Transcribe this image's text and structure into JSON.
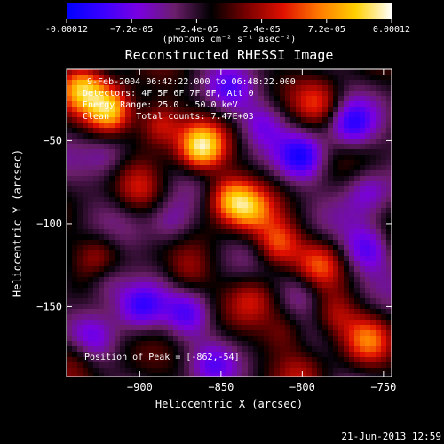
{
  "colorbar": {
    "ticks": [
      "-0.00012",
      "−7.2e-05",
      "−2.4e-05",
      "2.4e-05",
      "7.2e-05",
      "0.00012"
    ],
    "tick_values": [
      -0.00012,
      -7.2e-05,
      -2.4e-05,
      2.4e-05,
      7.2e-05,
      0.00012
    ],
    "range": [
      -0.00012,
      0.00012
    ],
    "unit_label": "(photons cm⁻² s⁻¹ asec⁻²)",
    "colors": [
      "#0000ff",
      "#3a00ff",
      "#7a00e0",
      "#6a1e6a",
      "#000000",
      "#7a0000",
      "#e01000",
      "#ff7a00",
      "#ffd000",
      "#ffffff"
    ]
  },
  "chart_data": {
    "type": "heatmap",
    "title": "Reconstructed RHESSI Image",
    "xlabel": "Heliocentric X (arcsec)",
    "ylabel": "Heliocentric Y (arcsec)",
    "xlim": [
      -945,
      -745
    ],
    "ylim": [
      -192,
      -7
    ],
    "x_ticks": [
      -900,
      -850,
      -800,
      -750
    ],
    "x_tick_labels": [
      "−900",
      "−850",
      "−800",
      "−750"
    ],
    "y_ticks": [
      -50,
      -100,
      -150
    ],
    "y_tick_labels": [
      "−50",
      "−100",
      "−150"
    ],
    "annotations": [
      "9-Feb-2004 06:42:22.000 to 06:48:22.000",
      "Detectors: 4F 5F 6F 7F 8F, Att 0",
      "Energy Range: 25.0 - 50.0 keV",
      "Clean     Total counts: 7.47E+03"
    ],
    "peak_label": "Position of Peak = [-862,-54]",
    "peak": [
      -862,
      -54
    ],
    "sources": [
      {
        "x": -862,
        "y": -54,
        "amp": 1.0
      },
      {
        "x": -918,
        "y": -32,
        "amp": 0.95
      },
      {
        "x": -935,
        "y": -18,
        "amp": 0.8
      },
      {
        "x": -888,
        "y": -40,
        "amp": 0.6
      },
      {
        "x": -845,
        "y": -85,
        "amp": 0.75
      },
      {
        "x": -832,
        "y": -92,
        "amp": 0.6
      },
      {
        "x": -815,
        "y": -112,
        "amp": 0.65
      },
      {
        "x": -790,
        "y": -28,
        "amp": 0.45
      },
      {
        "x": -790,
        "y": -125,
        "amp": 0.5
      },
      {
        "x": -760,
        "y": -170,
        "amp": 0.55
      },
      {
        "x": -780,
        "y": -155,
        "amp": 0.4
      },
      {
        "x": -810,
        "y": -165,
        "amp": 0.35
      },
      {
        "x": -830,
        "y": -145,
        "amp": 0.35
      },
      {
        "x": -940,
        "y": -180,
        "amp": 0.3
      },
      {
        "x": -925,
        "y": -120,
        "amp": 0.35
      },
      {
        "x": -870,
        "y": -130,
        "amp": 0.3
      },
      {
        "x": -900,
        "y": -80,
        "amp": 0.35
      },
      {
        "x": -800,
        "y": -190,
        "amp": 0.25
      },
      {
        "x": -870,
        "y": -155,
        "amp": -0.45
      },
      {
        "x": -900,
        "y": -150,
        "amp": -0.55
      },
      {
        "x": -920,
        "y": -135,
        "amp": -0.4
      },
      {
        "x": -800,
        "y": -60,
        "amp": -0.6
      },
      {
        "x": -770,
        "y": -40,
        "amp": -0.55
      },
      {
        "x": -760,
        "y": -80,
        "amp": -0.4
      },
      {
        "x": -760,
        "y": -115,
        "amp": -0.5
      },
      {
        "x": -825,
        "y": -40,
        "amp": -0.35
      },
      {
        "x": -845,
        "y": -20,
        "amp": -0.35
      },
      {
        "x": -880,
        "y": -100,
        "amp": -0.35
      },
      {
        "x": -920,
        "y": -60,
        "amp": -0.3
      },
      {
        "x": -930,
        "y": -170,
        "amp": -0.3
      },
      {
        "x": -855,
        "y": -185,
        "amp": -0.3
      },
      {
        "x": -800,
        "y": -140,
        "amp": -0.3
      }
    ]
  },
  "footer": {
    "date": "21-Jun-2013 12:59"
  }
}
